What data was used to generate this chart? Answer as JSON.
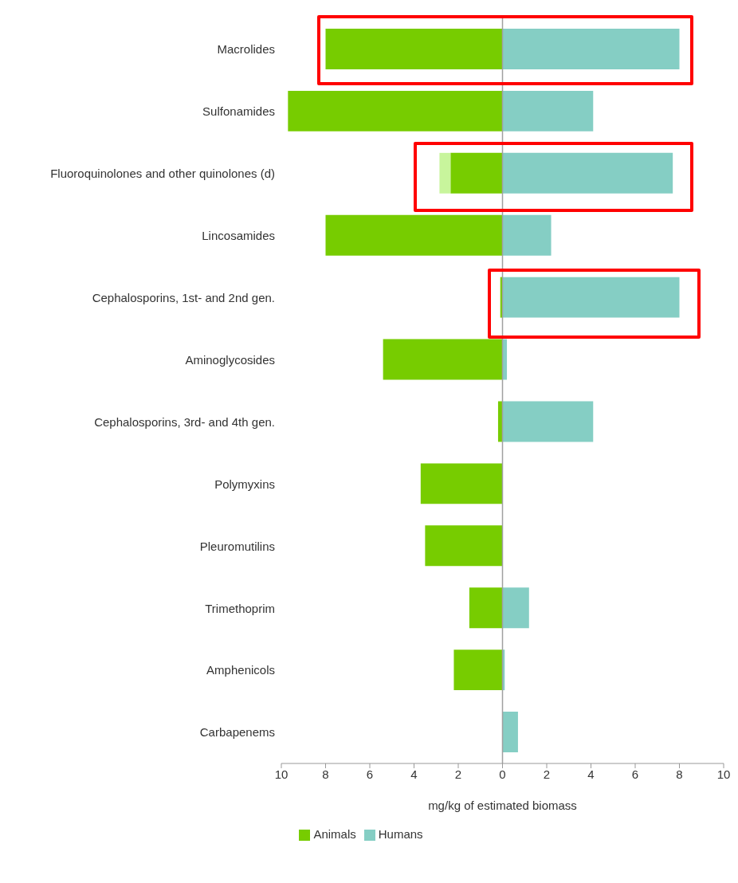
{
  "chart_data": {
    "type": "bar",
    "orientation": "horizontal",
    "stacked": true,
    "categories": [
      "Macrolides",
      "Sulfonamides",
      "Fluoroquinolones and other quinolones (d)",
      "Lincosamides",
      "Cephalosporins, 1st- and 2nd gen.",
      "Aminoglycosides",
      "Cephalosporins, 3rd- and 4th gen.",
      "Polymyxins",
      "Pleuromutilins",
      "Trimethoprim",
      "Amphenicols",
      "Carbapenems"
    ],
    "series": [
      {
        "name": "Animals",
        "color": "#77cc00",
        "values": [
          -8.0,
          -9.7,
          -2.35,
          -8.0,
          -0.1,
          -5.4,
          -0.2,
          -3.7,
          -3.5,
          -1.5,
          -2.2,
          0
        ]
      },
      {
        "color": "#c8f59c",
        "values": [
          0,
          0,
          -0.5,
          0,
          0,
          0,
          0,
          0,
          0,
          0,
          0,
          0
        ]
      },
      {
        "name": "Humans",
        "color": "#85cec4",
        "values": [
          8.0,
          4.1,
          7.7,
          2.2,
          8.0,
          0.2,
          4.1,
          0,
          0,
          1.2,
          0.1,
          0.7
        ]
      }
    ],
    "xlim": [
      -10,
      10
    ],
    "xticks": [
      {
        "value": -10,
        "label": "10"
      },
      {
        "value": -8,
        "label": "8"
      },
      {
        "value": -6,
        "label": "6"
      },
      {
        "value": -4,
        "label": "4"
      },
      {
        "value": -2,
        "label": "2"
      },
      0,
      2,
      4,
      6,
      8,
      10
    ],
    "xlabel": "mg/kg of estimated biomass",
    "ref_lines": [
      {
        "axis": "x",
        "value": 0,
        "color": "#a0a0a0"
      }
    ],
    "legend": "bottom"
  }
}
